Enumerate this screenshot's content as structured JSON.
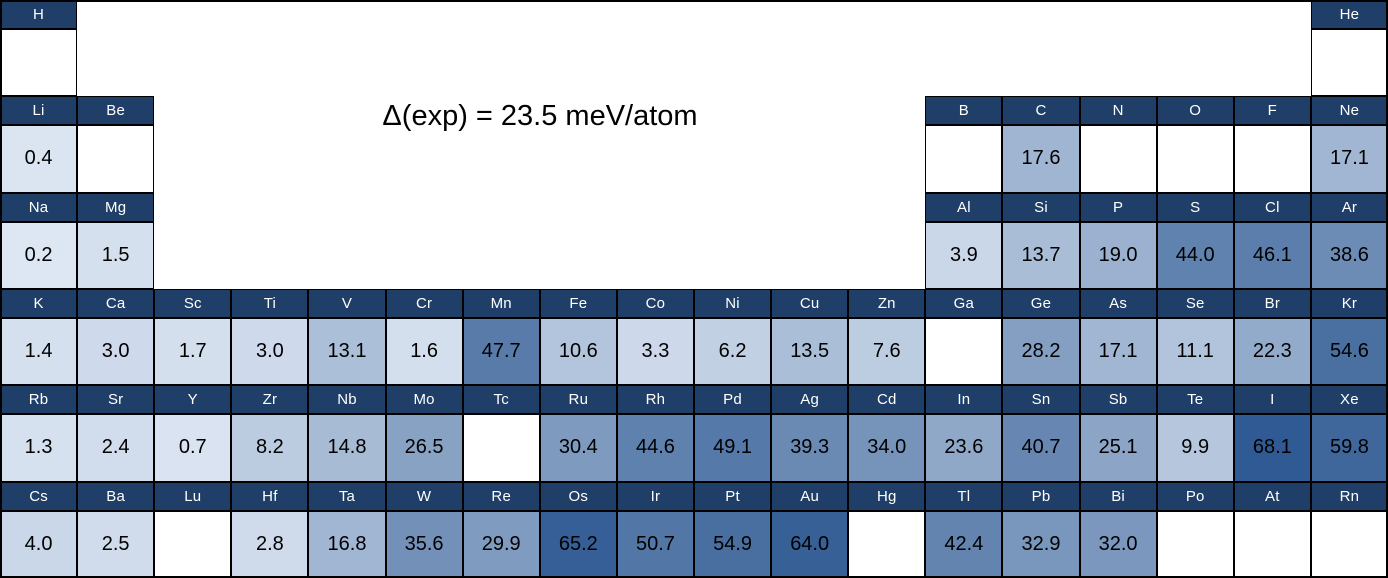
{
  "title": "Δ(exp) = 23.5 meV/atom",
  "colors": {
    "header_bg": "#1F3E68",
    "header_text": "#FFFFFF",
    "cell_border": "#000000",
    "value_text": "#000000",
    "empty_cell_bg": "#FFFFFF",
    "scale_light": "#DFE8F4",
    "scale_dark": "#2F5A93"
  },
  "chart_data": {
    "type": "heatmap",
    "title": "Δ(exp) = 23.5 meV/atom",
    "value_unit": "meV/atom",
    "layout": "periodic-table",
    "columns": 18,
    "rows": 6,
    "legend_position": "none",
    "color_scale": {
      "min": 0,
      "max": 68.1,
      "gamma": 0.75
    },
    "elements": [
      {
        "symbol": "H",
        "period": 1,
        "group": 1,
        "value": null
      },
      {
        "symbol": "He",
        "period": 1,
        "group": 18,
        "value": null
      },
      {
        "symbol": "Li",
        "period": 2,
        "group": 1,
        "value": "0.4"
      },
      {
        "symbol": "Be",
        "period": 2,
        "group": 2,
        "value": null
      },
      {
        "symbol": "B",
        "period": 2,
        "group": 13,
        "value": null
      },
      {
        "symbol": "C",
        "period": 2,
        "group": 14,
        "value": "17.6"
      },
      {
        "symbol": "N",
        "period": 2,
        "group": 15,
        "value": null
      },
      {
        "symbol": "O",
        "period": 2,
        "group": 16,
        "value": null
      },
      {
        "symbol": "F",
        "period": 2,
        "group": 17,
        "value": null
      },
      {
        "symbol": "Ne",
        "period": 2,
        "group": 18,
        "value": "17.1"
      },
      {
        "symbol": "Na",
        "period": 3,
        "group": 1,
        "value": "0.2"
      },
      {
        "symbol": "Mg",
        "period": 3,
        "group": 2,
        "value": "1.5"
      },
      {
        "symbol": "Al",
        "period": 3,
        "group": 13,
        "value": "3.9"
      },
      {
        "symbol": "Si",
        "period": 3,
        "group": 14,
        "value": "13.7"
      },
      {
        "symbol": "P",
        "period": 3,
        "group": 15,
        "value": "19.0"
      },
      {
        "symbol": "S",
        "period": 3,
        "group": 16,
        "value": "44.0"
      },
      {
        "symbol": "Cl",
        "period": 3,
        "group": 17,
        "value": "46.1"
      },
      {
        "symbol": "Ar",
        "period": 3,
        "group": 18,
        "value": "38.6"
      },
      {
        "symbol": "K",
        "period": 4,
        "group": 1,
        "value": "1.4"
      },
      {
        "symbol": "Ca",
        "period": 4,
        "group": 2,
        "value": "3.0"
      },
      {
        "symbol": "Sc",
        "period": 4,
        "group": 3,
        "value": "1.7"
      },
      {
        "symbol": "Ti",
        "period": 4,
        "group": 4,
        "value": "3.0"
      },
      {
        "symbol": "V",
        "period": 4,
        "group": 5,
        "value": "13.1"
      },
      {
        "symbol": "Cr",
        "period": 4,
        "group": 6,
        "value": "1.6"
      },
      {
        "symbol": "Mn",
        "period": 4,
        "group": 7,
        "value": "47.7"
      },
      {
        "symbol": "Fe",
        "period": 4,
        "group": 8,
        "value": "10.6"
      },
      {
        "symbol": "Co",
        "period": 4,
        "group": 9,
        "value": "3.3"
      },
      {
        "symbol": "Ni",
        "period": 4,
        "group": 10,
        "value": "6.2"
      },
      {
        "symbol": "Cu",
        "period": 4,
        "group": 11,
        "value": "13.5"
      },
      {
        "symbol": "Zn",
        "period": 4,
        "group": 12,
        "value": "7.6"
      },
      {
        "symbol": "Ga",
        "period": 4,
        "group": 13,
        "value": null
      },
      {
        "symbol": "Ge",
        "period": 4,
        "group": 14,
        "value": "28.2"
      },
      {
        "symbol": "As",
        "period": 4,
        "group": 15,
        "value": "17.1"
      },
      {
        "symbol": "Se",
        "period": 4,
        "group": 16,
        "value": "11.1"
      },
      {
        "symbol": "Br",
        "period": 4,
        "group": 17,
        "value": "22.3"
      },
      {
        "symbol": "Kr",
        "period": 4,
        "group": 18,
        "value": "54.6"
      },
      {
        "symbol": "Rb",
        "period": 5,
        "group": 1,
        "value": "1.3"
      },
      {
        "symbol": "Sr",
        "period": 5,
        "group": 2,
        "value": "2.4"
      },
      {
        "symbol": "Y",
        "period": 5,
        "group": 3,
        "value": "0.7"
      },
      {
        "symbol": "Zr",
        "period": 5,
        "group": 4,
        "value": "8.2"
      },
      {
        "symbol": "Nb",
        "period": 5,
        "group": 5,
        "value": "14.8"
      },
      {
        "symbol": "Mo",
        "period": 5,
        "group": 6,
        "value": "26.5"
      },
      {
        "symbol": "Tc",
        "period": 5,
        "group": 7,
        "value": null
      },
      {
        "symbol": "Ru",
        "period": 5,
        "group": 8,
        "value": "30.4"
      },
      {
        "symbol": "Rh",
        "period": 5,
        "group": 9,
        "value": "44.6"
      },
      {
        "symbol": "Pd",
        "period": 5,
        "group": 10,
        "value": "49.1"
      },
      {
        "symbol": "Ag",
        "period": 5,
        "group": 11,
        "value": "39.3"
      },
      {
        "symbol": "Cd",
        "period": 5,
        "group": 12,
        "value": "34.0"
      },
      {
        "symbol": "In",
        "period": 5,
        "group": 13,
        "value": "23.6"
      },
      {
        "symbol": "Sn",
        "period": 5,
        "group": 14,
        "value": "40.7"
      },
      {
        "symbol": "Sb",
        "period": 5,
        "group": 15,
        "value": "25.1"
      },
      {
        "symbol": "Te",
        "period": 5,
        "group": 16,
        "value": "9.9"
      },
      {
        "symbol": "I",
        "period": 5,
        "group": 17,
        "value": "68.1"
      },
      {
        "symbol": "Xe",
        "period": 5,
        "group": 18,
        "value": "59.8"
      },
      {
        "symbol": "Cs",
        "period": 6,
        "group": 1,
        "value": "4.0"
      },
      {
        "symbol": "Ba",
        "period": 6,
        "group": 2,
        "value": "2.5"
      },
      {
        "symbol": "Lu",
        "period": 6,
        "group": 3,
        "value": null
      },
      {
        "symbol": "Hf",
        "period": 6,
        "group": 4,
        "value": "2.8"
      },
      {
        "symbol": "Ta",
        "period": 6,
        "group": 5,
        "value": "16.8"
      },
      {
        "symbol": "W",
        "period": 6,
        "group": 6,
        "value": "35.6"
      },
      {
        "symbol": "Re",
        "period": 6,
        "group": 7,
        "value": "29.9"
      },
      {
        "symbol": "Os",
        "period": 6,
        "group": 8,
        "value": "65.2"
      },
      {
        "symbol": "Ir",
        "period": 6,
        "group": 9,
        "value": "50.7"
      },
      {
        "symbol": "Pt",
        "period": 6,
        "group": 10,
        "value": "54.9"
      },
      {
        "symbol": "Au",
        "period": 6,
        "group": 11,
        "value": "64.0"
      },
      {
        "symbol": "Hg",
        "period": 6,
        "group": 12,
        "value": null
      },
      {
        "symbol": "Tl",
        "period": 6,
        "group": 13,
        "value": "42.4"
      },
      {
        "symbol": "Pb",
        "period": 6,
        "group": 14,
        "value": "32.9"
      },
      {
        "symbol": "Bi",
        "period": 6,
        "group": 15,
        "value": "32.0"
      },
      {
        "symbol": "Po",
        "period": 6,
        "group": 16,
        "value": null
      },
      {
        "symbol": "At",
        "period": 6,
        "group": 17,
        "value": null
      },
      {
        "symbol": "Rn",
        "period": 6,
        "group": 18,
        "value": null
      }
    ]
  }
}
